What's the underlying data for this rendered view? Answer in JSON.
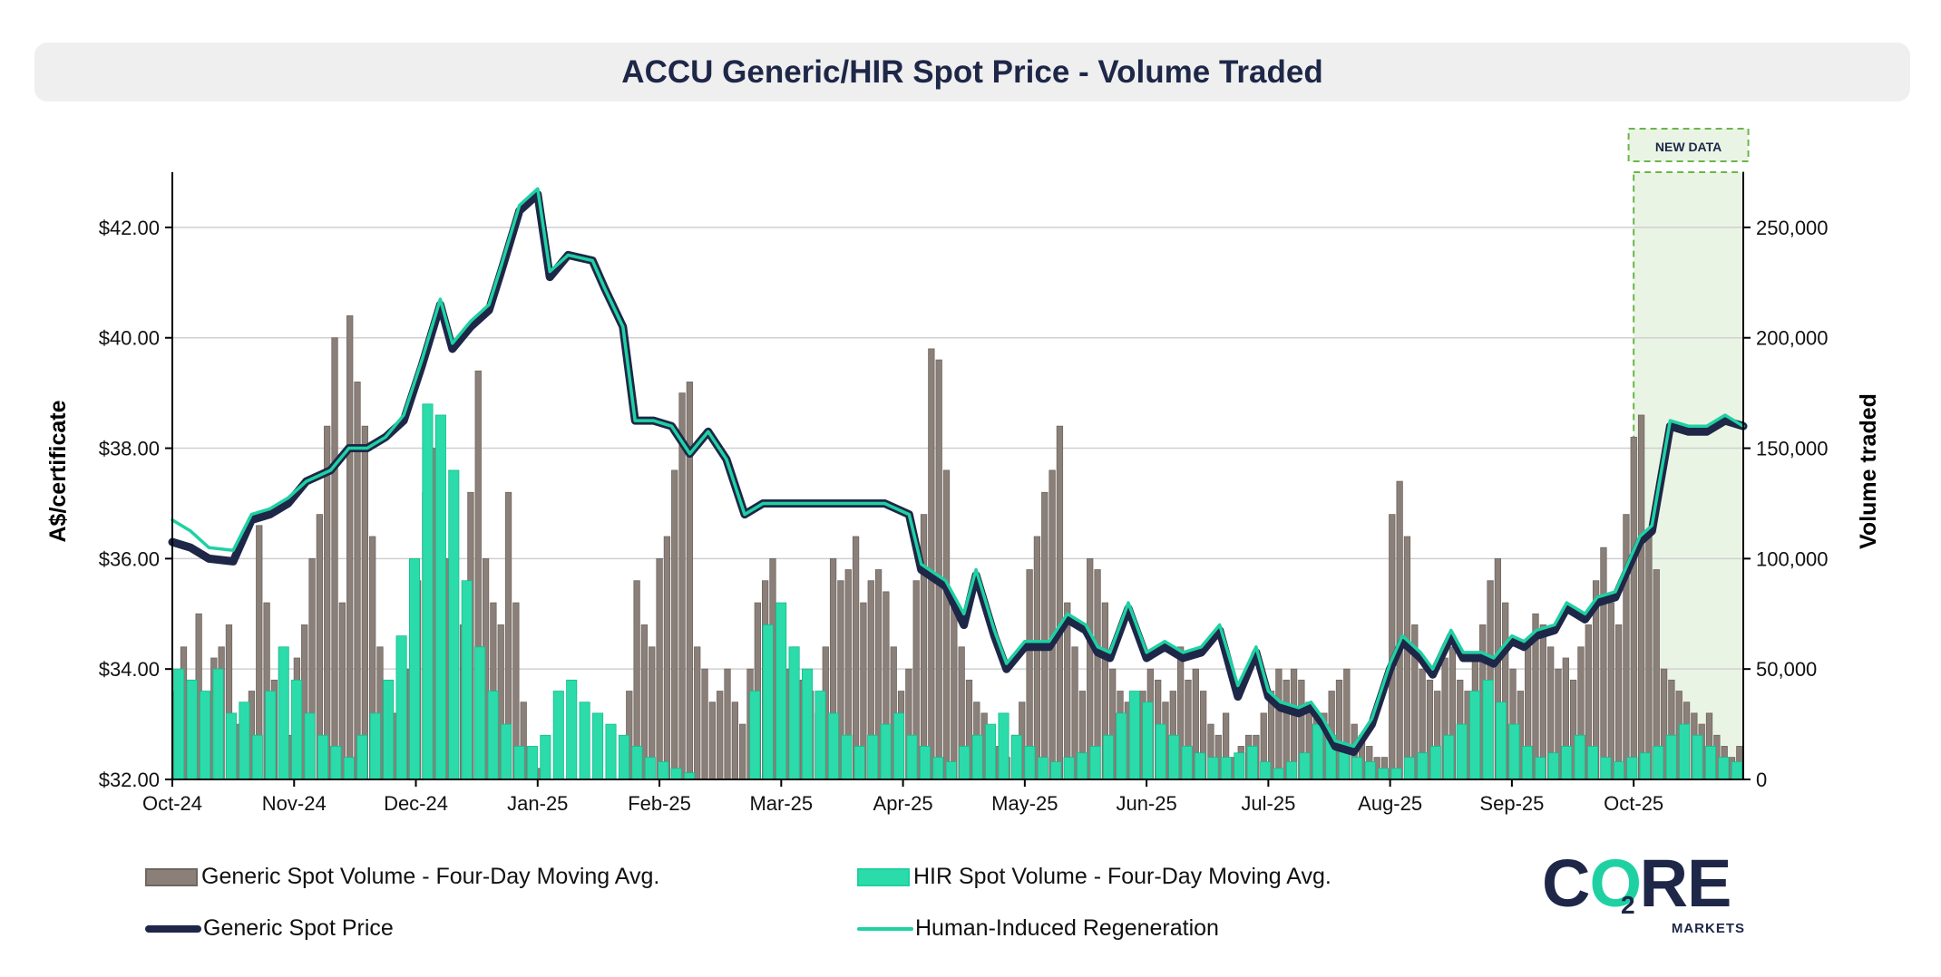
{
  "header": {
    "title": "ACCU Generic/HIR Spot Price - Volume Traded"
  },
  "annotation": {
    "label": "NEW DATA"
  },
  "legend": {
    "generic_volume": "Generic Spot Volume - Four-Day Moving Avg.",
    "hir_volume": "HIR Spot Volume - Four-Day Moving Avg.",
    "generic_price": "Generic Spot Price",
    "hir_price": "Human-Induced Regeneration"
  },
  "logo": {
    "text_c": "C",
    "text_o": "O",
    "text_sub2": "2",
    "text_re": "RE",
    "subtitle": "MARKETS"
  },
  "colors": {
    "generic_volume_fill": "#8b8079",
    "generic_volume_edge": "#6f6660",
    "hir_volume_fill": "#2bdcaa",
    "generic_price": "#1e2748",
    "hir_price": "#1fd1a2",
    "new_data_fill": "#eaf4e4",
    "new_data_border": "#6bb54a"
  },
  "chart_data": {
    "type": "line",
    "title": "ACCU Generic/HIR Spot Price - Volume Traded",
    "ylabel": "A$/certificate",
    "y2label": "Volume traded",
    "ylim": [
      32,
      43
    ],
    "y2lim": [
      0,
      275000
    ],
    "y_ticks": [
      "$32.00",
      "$34.00",
      "$36.00",
      "$38.00",
      "$40.00",
      "$42.00"
    ],
    "y_tick_values": [
      32,
      34,
      36,
      38,
      40,
      42
    ],
    "y2_ticks": [
      "0",
      "50,000",
      "100,000",
      "150,000",
      "200,000",
      "250,000"
    ],
    "y2_tick_values": [
      0,
      50000,
      100000,
      150000,
      200000,
      250000
    ],
    "x_ticks": [
      "Oct-24",
      "Nov-24",
      "Dec-24",
      "Jan-25",
      "Feb-25",
      "Mar-25",
      "Apr-25",
      "May-25",
      "Jun-25",
      "Jul-25",
      "Aug-25",
      "Sep-25",
      "Oct-25"
    ],
    "x_range_months": [
      0,
      12.9
    ],
    "new_data_range_months": [
      12.0,
      12.9
    ],
    "series": [
      {
        "name": "Generic Spot Price",
        "kind": "line",
        "points": [
          [
            0,
            36.3
          ],
          [
            0.15,
            36.2
          ],
          [
            0.3,
            36.0
          ],
          [
            0.5,
            35.95
          ],
          [
            0.65,
            36.7
          ],
          [
            0.8,
            36.8
          ],
          [
            0.95,
            37.0
          ],
          [
            1.1,
            37.4
          ],
          [
            1.3,
            37.6
          ],
          [
            1.45,
            38.0
          ],
          [
            1.6,
            38.0
          ],
          [
            1.75,
            38.2
          ],
          [
            1.9,
            38.5
          ],
          [
            2.05,
            39.5
          ],
          [
            2.2,
            40.6
          ],
          [
            2.3,
            39.8
          ],
          [
            2.45,
            40.2
          ],
          [
            2.6,
            40.5
          ],
          [
            2.7,
            41.2
          ],
          [
            2.85,
            42.3
          ],
          [
            3.0,
            42.6
          ],
          [
            3.1,
            41.1
          ],
          [
            3.25,
            41.5
          ],
          [
            3.45,
            41.4
          ],
          [
            3.55,
            40.9
          ],
          [
            3.7,
            40.2
          ],
          [
            3.8,
            38.5
          ],
          [
            3.95,
            38.5
          ],
          [
            4.1,
            38.4
          ],
          [
            4.25,
            37.9
          ],
          [
            4.4,
            38.3
          ],
          [
            4.55,
            37.8
          ],
          [
            4.7,
            36.8
          ],
          [
            4.85,
            37.0
          ],
          [
            5.1,
            37.0
          ],
          [
            5.35,
            37.0
          ],
          [
            5.6,
            37.0
          ],
          [
            5.85,
            37.0
          ],
          [
            6.05,
            36.8
          ],
          [
            6.15,
            35.8
          ],
          [
            6.35,
            35.5
          ],
          [
            6.5,
            34.8
          ],
          [
            6.6,
            35.7
          ],
          [
            6.75,
            34.6
          ],
          [
            6.85,
            34.0
          ],
          [
            7.0,
            34.4
          ],
          [
            7.2,
            34.4
          ],
          [
            7.35,
            34.9
          ],
          [
            7.5,
            34.7
          ],
          [
            7.6,
            34.3
          ],
          [
            7.7,
            34.2
          ],
          [
            7.85,
            35.1
          ],
          [
            8.0,
            34.2
          ],
          [
            8.15,
            34.4
          ],
          [
            8.3,
            34.2
          ],
          [
            8.45,
            34.3
          ],
          [
            8.6,
            34.7
          ],
          [
            8.75,
            33.5
          ],
          [
            8.9,
            34.3
          ],
          [
            9.0,
            33.5
          ],
          [
            9.1,
            33.3
          ],
          [
            9.25,
            33.2
          ],
          [
            9.35,
            33.3
          ],
          [
            9.45,
            33.0
          ],
          [
            9.55,
            32.6
          ],
          [
            9.7,
            32.5
          ],
          [
            9.85,
            33.0
          ],
          [
            10.0,
            34.0
          ],
          [
            10.1,
            34.5
          ],
          [
            10.25,
            34.2
          ],
          [
            10.35,
            33.9
          ],
          [
            10.5,
            34.6
          ],
          [
            10.6,
            34.2
          ],
          [
            10.75,
            34.2
          ],
          [
            10.85,
            34.1
          ],
          [
            11.0,
            34.5
          ],
          [
            11.1,
            34.4
          ],
          [
            11.2,
            34.6
          ],
          [
            11.35,
            34.7
          ],
          [
            11.45,
            35.1
          ],
          [
            11.6,
            34.9
          ],
          [
            11.7,
            35.2
          ],
          [
            11.85,
            35.3
          ],
          [
            11.95,
            35.8
          ],
          [
            12.05,
            36.3
          ],
          [
            12.15,
            36.5
          ],
          [
            12.3,
            38.4
          ],
          [
            12.45,
            38.3
          ],
          [
            12.6,
            38.3
          ],
          [
            12.75,
            38.5
          ],
          [
            12.9,
            38.4
          ]
        ],
        "note_on_points": "x in months since Oct-24"
      },
      {
        "name": "Human-Induced Regeneration",
        "kind": "line",
        "points": [
          [
            0,
            36.7
          ],
          [
            0.15,
            36.5
          ],
          [
            0.3,
            36.2
          ],
          [
            0.5,
            36.15
          ],
          [
            0.65,
            36.8
          ],
          [
            0.8,
            36.9
          ],
          [
            0.95,
            37.1
          ],
          [
            1.1,
            37.4
          ],
          [
            1.3,
            37.6
          ],
          [
            1.45,
            38.0
          ],
          [
            1.6,
            38.0
          ],
          [
            1.75,
            38.2
          ],
          [
            1.9,
            38.6
          ],
          [
            2.05,
            39.6
          ],
          [
            2.2,
            40.7
          ],
          [
            2.3,
            39.9
          ],
          [
            2.45,
            40.3
          ],
          [
            2.6,
            40.6
          ],
          [
            2.7,
            41.3
          ],
          [
            2.85,
            42.4
          ],
          [
            3.0,
            42.7
          ],
          [
            3.1,
            41.2
          ],
          [
            3.25,
            41.5
          ],
          [
            3.45,
            41.4
          ],
          [
            3.55,
            40.9
          ],
          [
            3.7,
            40.2
          ],
          [
            3.8,
            38.5
          ],
          [
            3.95,
            38.5
          ],
          [
            4.1,
            38.4
          ],
          [
            4.25,
            37.9
          ],
          [
            4.4,
            38.3
          ],
          [
            4.55,
            37.8
          ],
          [
            4.7,
            36.8
          ],
          [
            4.85,
            37.0
          ],
          [
            5.1,
            37.0
          ],
          [
            5.35,
            37.0
          ],
          [
            5.6,
            37.0
          ],
          [
            5.85,
            37.0
          ],
          [
            6.05,
            36.8
          ],
          [
            6.15,
            35.9
          ],
          [
            6.35,
            35.6
          ],
          [
            6.5,
            35.0
          ],
          [
            6.6,
            35.8
          ],
          [
            6.75,
            34.7
          ],
          [
            6.85,
            34.1
          ],
          [
            7.0,
            34.5
          ],
          [
            7.2,
            34.5
          ],
          [
            7.35,
            35.0
          ],
          [
            7.5,
            34.8
          ],
          [
            7.6,
            34.4
          ],
          [
            7.7,
            34.3
          ],
          [
            7.85,
            35.2
          ],
          [
            8.0,
            34.3
          ],
          [
            8.15,
            34.5
          ],
          [
            8.3,
            34.3
          ],
          [
            8.45,
            34.4
          ],
          [
            8.6,
            34.8
          ],
          [
            8.75,
            33.7
          ],
          [
            8.9,
            34.4
          ],
          [
            9.0,
            33.6
          ],
          [
            9.1,
            33.4
          ],
          [
            9.25,
            33.3
          ],
          [
            9.35,
            33.4
          ],
          [
            9.45,
            33.1
          ],
          [
            9.55,
            32.7
          ],
          [
            9.7,
            32.6
          ],
          [
            9.85,
            33.1
          ],
          [
            10.0,
            34.1
          ],
          [
            10.1,
            34.6
          ],
          [
            10.25,
            34.3
          ],
          [
            10.35,
            34.0
          ],
          [
            10.5,
            34.7
          ],
          [
            10.6,
            34.3
          ],
          [
            10.75,
            34.3
          ],
          [
            10.85,
            34.2
          ],
          [
            11.0,
            34.6
          ],
          [
            11.1,
            34.5
          ],
          [
            11.2,
            34.7
          ],
          [
            11.35,
            34.8
          ],
          [
            11.45,
            35.2
          ],
          [
            11.6,
            35.0
          ],
          [
            11.7,
            35.3
          ],
          [
            11.85,
            35.4
          ],
          [
            11.95,
            35.9
          ],
          [
            12.05,
            36.4
          ],
          [
            12.15,
            36.6
          ],
          [
            12.3,
            38.5
          ],
          [
            12.45,
            38.4
          ],
          [
            12.6,
            38.4
          ],
          [
            12.75,
            38.6
          ],
          [
            12.9,
            38.4
          ]
        ]
      },
      {
        "name": "Generic Spot Volume - Four-Day Moving Avg.",
        "kind": "bar",
        "axis": "y2",
        "bars_per_segment_approx": 22,
        "segments_months": [
          [
            0,
            1
          ],
          [
            1,
            2
          ],
          [
            2,
            3
          ],
          [
            3,
            4
          ],
          [
            4,
            5
          ],
          [
            5,
            6
          ],
          [
            6,
            7
          ],
          [
            7,
            8
          ],
          [
            8,
            9
          ],
          [
            9,
            10
          ],
          [
            10,
            11
          ],
          [
            11,
            12
          ],
          [
            12,
            12.9
          ]
        ],
        "values": [
          40000,
          60000,
          45000,
          75000,
          30000,
          55000,
          60000,
          70000,
          25000,
          30000,
          40000,
          115000,
          80000,
          45000,
          40000,
          20000,
          55000,
          70000,
          100000,
          120000,
          160000,
          200000,
          80000,
          210000,
          180000,
          160000,
          110000,
          60000,
          40000,
          30000,
          30000,
          50000,
          90000,
          130000,
          150000,
          110000,
          100000,
          40000,
          70000,
          130000,
          185000,
          100000,
          80000,
          70000,
          130000,
          80000,
          35000,
          10000,
          5000,
          2000,
          0,
          0,
          0,
          0,
          0,
          0,
          0,
          0,
          0,
          0,
          40000,
          90000,
          70000,
          60000,
          100000,
          110000,
          140000,
          175000,
          180000,
          60000,
          50000,
          35000,
          40000,
          50000,
          35000,
          25000,
          50000,
          80000,
          90000,
          100000,
          70000,
          50000,
          60000,
          45000,
          40000,
          30000,
          60000,
          100000,
          90000,
          95000,
          110000,
          80000,
          90000,
          95000,
          85000,
          60000,
          40000,
          50000,
          90000,
          120000,
          195000,
          190000,
          140000,
          80000,
          60000,
          45000,
          35000,
          30000,
          20000,
          15000,
          10000,
          20000,
          35000,
          95000,
          110000,
          130000,
          140000,
          160000,
          80000,
          60000,
          40000,
          100000,
          95000,
          80000,
          50000,
          40000,
          35000,
          30000,
          40000,
          50000,
          45000,
          35000,
          40000,
          60000,
          45000,
          50000,
          40000,
          25000,
          20000,
          30000,
          10000,
          15000,
          20000,
          20000,
          30000,
          40000,
          50000,
          45000,
          50000,
          45000,
          35000,
          30000,
          30000,
          40000,
          45000,
          50000,
          25000,
          20000,
          15000,
          10000,
          10000,
          120000,
          135000,
          110000,
          70000,
          50000,
          45000,
          40000,
          55000,
          60000,
          45000,
          40000,
          55000,
          70000,
          90000,
          100000,
          80000,
          50000,
          40000,
          60000,
          75000,
          70000,
          60000,
          50000,
          55000,
          45000,
          60000,
          70000,
          90000,
          105000,
          80000,
          70000,
          120000,
          155000,
          165000,
          110000,
          95000,
          50000,
          45000,
          40000,
          35000,
          30000,
          25000,
          30000,
          20000,
          15000,
          10000,
          15000
        ]
      },
      {
        "name": "HIR Spot Volume - Four-Day Moving Avg.",
        "kind": "bar",
        "axis": "y2",
        "values": [
          50000,
          45000,
          40000,
          50000,
          30000,
          35000,
          20000,
          40000,
          60000,
          45000,
          30000,
          20000,
          15000,
          10000,
          20000,
          30000,
          45000,
          65000,
          100000,
          170000,
          165000,
          140000,
          90000,
          60000,
          40000,
          25000,
          15000,
          15000,
          20000,
          40000,
          45000,
          35000,
          30000,
          25000,
          20000,
          15000,
          10000,
          8000,
          5000,
          3000,
          0,
          0,
          0,
          0,
          40000,
          70000,
          80000,
          60000,
          50000,
          40000,
          30000,
          20000,
          15000,
          20000,
          25000,
          30000,
          20000,
          15000,
          10000,
          8000,
          15000,
          20000,
          25000,
          30000,
          20000,
          15000,
          10000,
          8000,
          10000,
          12000,
          15000,
          20000,
          30000,
          40000,
          35000,
          25000,
          20000,
          15000,
          12000,
          10000,
          10000,
          12000,
          15000,
          8000,
          5000,
          8000,
          12000,
          25000,
          20000,
          15000,
          10000,
          8000,
          5000,
          5000,
          10000,
          12000,
          15000,
          20000,
          25000,
          40000,
          45000,
          35000,
          25000,
          15000,
          10000,
          12000,
          15000,
          20000,
          15000,
          10000,
          8000,
          10000,
          12000,
          15000,
          20000,
          25000,
          20000,
          15000,
          10000,
          8000
        ]
      }
    ]
  }
}
